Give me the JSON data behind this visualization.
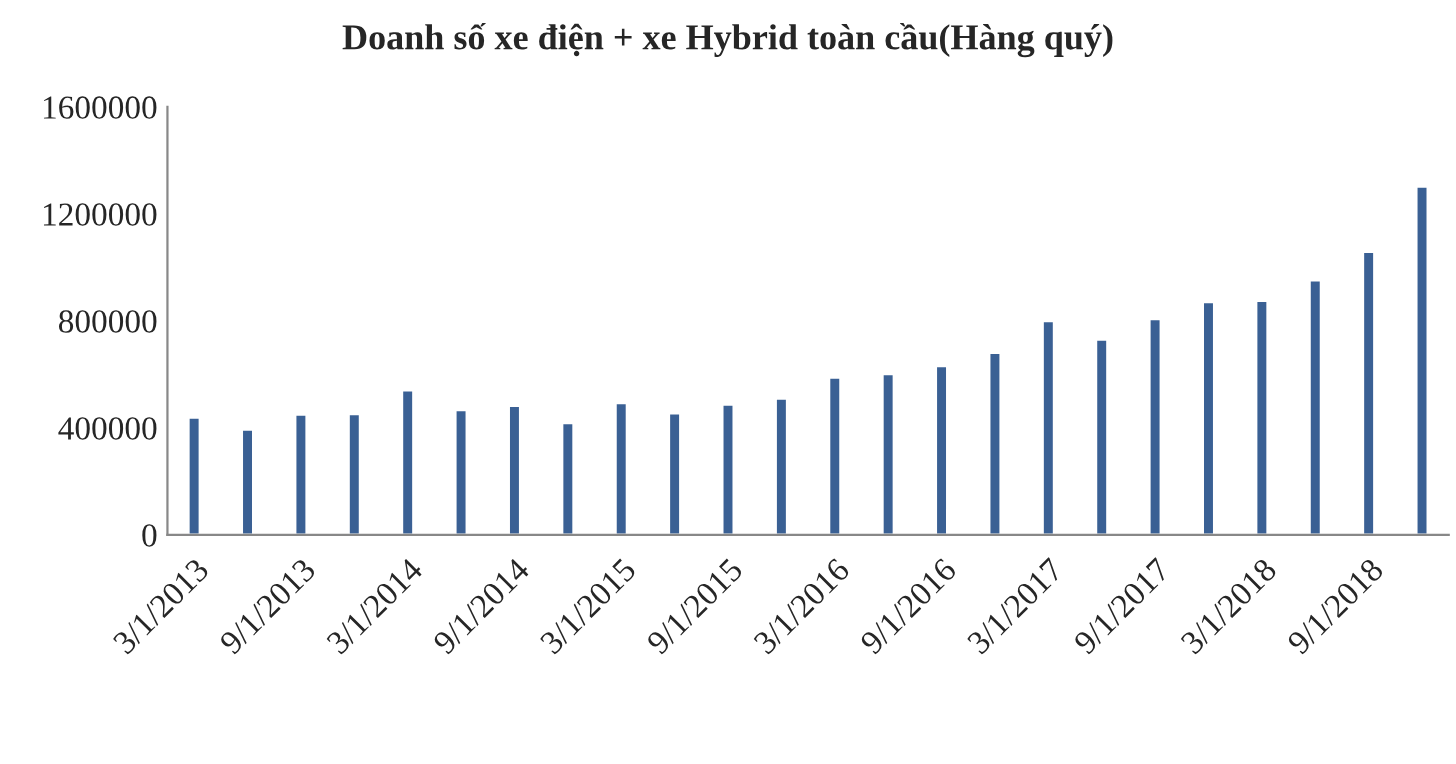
{
  "chart_data": {
    "type": "bar",
    "title": "Doanh số xe điện + xe Hybrid toàn cầu(Hàng quý)",
    "categories": [
      "3/1/2013",
      null,
      "9/1/2013",
      null,
      "3/1/2014",
      null,
      "9/1/2014",
      null,
      "3/1/2015",
      null,
      "9/1/2015",
      null,
      "3/1/2016",
      null,
      "9/1/2016",
      null,
      "3/1/2017",
      null,
      "9/1/2017",
      null,
      "3/1/2018",
      null,
      "9/1/2018",
      null
    ],
    "values": [
      439000,
      394000,
      450000,
      452000,
      541000,
      467000,
      483000,
      419000,
      493000,
      455000,
      488000,
      510000,
      589000,
      602000,
      632000,
      681000,
      800000,
      731000,
      808000,
      871000,
      876000,
      952000,
      1059000,
      1303000
    ],
    "color": "#3a6094",
    "ylim": [
      0,
      1600000
    ],
    "yticks": [
      0,
      400000,
      800000,
      1200000,
      1600000
    ],
    "grid": false
  }
}
